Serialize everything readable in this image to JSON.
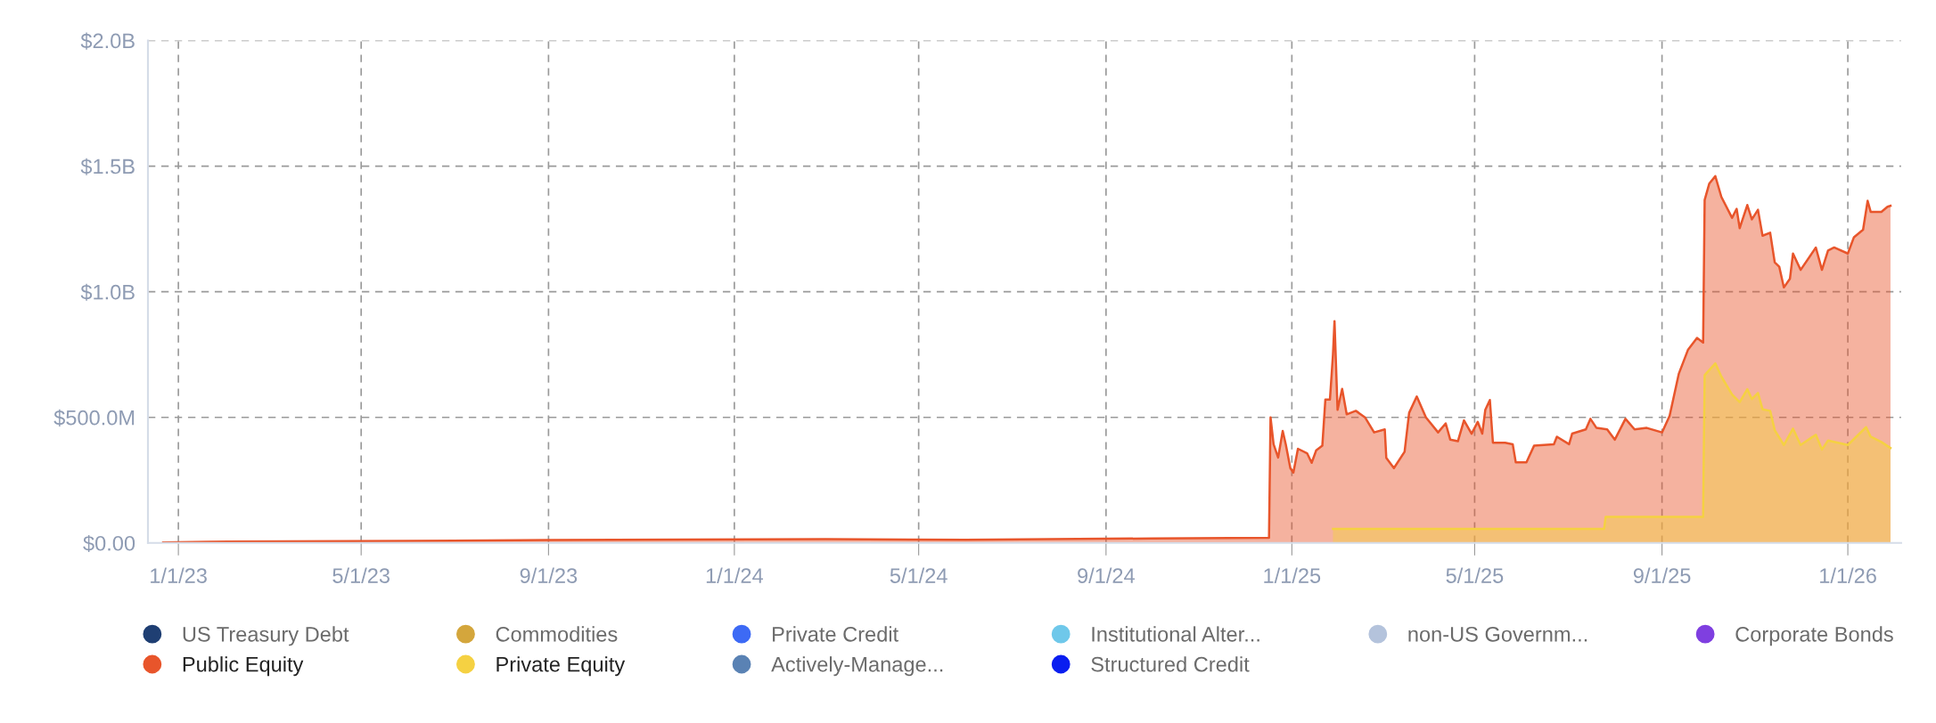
{
  "chart_data": {
    "type": "area",
    "xlim": [
      "2022-12-12",
      "2026-02-05"
    ],
    "xticks": [
      {
        "value": "2023-01-01",
        "label": "1/1/23"
      },
      {
        "value": "2023-05-01",
        "label": "5/1/23"
      },
      {
        "value": "2023-09-01",
        "label": "9/1/23"
      },
      {
        "value": "2024-01-01",
        "label": "1/1/24"
      },
      {
        "value": "2024-05-01",
        "label": "5/1/24"
      },
      {
        "value": "2024-09-01",
        "label": "9/1/24"
      },
      {
        "value": "2025-01-01",
        "label": "1/1/25"
      },
      {
        "value": "2025-05-01",
        "label": "5/1/25"
      },
      {
        "value": "2025-09-01",
        "label": "9/1/25"
      },
      {
        "value": "2026-01-01",
        "label": "1/1/26"
      }
    ],
    "ylim": [
      0,
      2000000000
    ],
    "yticks": [
      {
        "value": 0,
        "label": "$0.00"
      },
      {
        "value": 500000000,
        "label": "$500.0M"
      },
      {
        "value": 1000000000,
        "label": "$1.0B"
      },
      {
        "value": 1500000000,
        "label": "$1.5B"
      },
      {
        "value": 2000000000,
        "label": "$2.0B"
      }
    ],
    "grid": true,
    "legend": "bottom",
    "marker": "none",
    "line_style": "solid",
    "series": [
      {
        "name": "US Treasury Debt",
        "color": "#1f3f73"
      },
      {
        "name": "Commodities",
        "color": "#d4a63c"
      },
      {
        "name": "Private Credit",
        "color": "#3d6af5"
      },
      {
        "name": "Institutional Alter...",
        "color": "#6fc8ea"
      },
      {
        "name": "non-US Governm...",
        "color": "#b4c3dc"
      },
      {
        "name": "Corporate Bonds",
        "color": "#7f3fe0"
      },
      {
        "name": "Public Equity",
        "color": "#e8552b",
        "x": [
          "2022-12-22",
          "2023-01-20",
          "2023-06-01",
          "2023-09-01",
          "2024-03-01",
          "2024-06-01",
          "2024-10-01",
          "2024-12-17",
          "2024-12-18",
          "2024-12-20",
          "2024-12-23",
          "2024-12-26",
          "2024-12-28",
          "2024-12-31",
          "2025-01-02",
          "2025-01-05",
          "2025-01-11",
          "2025-01-14",
          "2025-01-17",
          "2025-01-21",
          "2025-01-23",
          "2025-01-26",
          "2025-01-28",
          "2025-01-29",
          "2025-01-31",
          "2025-02-03",
          "2025-02-06",
          "2025-02-12",
          "2025-02-18",
          "2025-02-24",
          "2025-03-03",
          "2025-03-04",
          "2025-03-09",
          "2025-03-16",
          "2025-03-19",
          "2025-03-24",
          "2025-03-30",
          "2025-04-07",
          "2025-04-12",
          "2025-04-15",
          "2025-04-20",
          "2025-04-24",
          "2025-04-29",
          "2025-05-03",
          "2025-05-06",
          "2025-05-08",
          "2025-05-11",
          "2025-05-13",
          "2025-05-21",
          "2025-05-26",
          "2025-05-28",
          "2025-06-04",
          "2025-06-09",
          "2025-06-22",
          "2025-06-24",
          "2025-07-02",
          "2025-07-04",
          "2025-07-13",
          "2025-07-16",
          "2025-07-20",
          "2025-07-27",
          "2025-08-01",
          "2025-08-08",
          "2025-08-14",
          "2025-08-22",
          "2025-09-01",
          "2025-09-06",
          "2025-09-12",
          "2025-09-18",
          "2025-09-24",
          "2025-09-28",
          "2025-09-29",
          "2025-10-02",
          "2025-10-06",
          "2025-10-10",
          "2025-10-17",
          "2025-10-20",
          "2025-10-22",
          "2025-10-27",
          "2025-10-30",
          "2025-11-03",
          "2025-11-06",
          "2025-11-11",
          "2025-11-14",
          "2025-11-17",
          "2025-11-20",
          "2025-11-24",
          "2025-11-26",
          "2025-12-01",
          "2025-12-11",
          "2025-12-15",
          "2025-12-19",
          "2025-12-23",
          "2026-01-01",
          "2026-01-05",
          "2026-01-11",
          "2026-01-14",
          "2026-01-16",
          "2026-01-23",
          "2026-01-27",
          "2026-01-29"
        ],
        "values": [
          2000000,
          5000000,
          8000000,
          12000000,
          15000000,
          13000000,
          18000000,
          21000000,
          500000000,
          393000000,
          340000000,
          446000000,
          393000000,
          298000000,
          280000000,
          375000000,
          357000000,
          319000000,
          369000000,
          387000000,
          571000000,
          571000000,
          750000000,
          883000000,
          530000000,
          613000000,
          512000000,
          526000000,
          500000000,
          440000000,
          452000000,
          339000000,
          298000000,
          363000000,
          518000000,
          583000000,
          500000000,
          440000000,
          476000000,
          411000000,
          405000000,
          488000000,
          435000000,
          482000000,
          435000000,
          530000000,
          569000000,
          399000000,
          399000000,
          393000000,
          321000000,
          321000000,
          387000000,
          393000000,
          423000000,
          393000000,
          435000000,
          452000000,
          494000000,
          458000000,
          452000000,
          411000000,
          494000000,
          452000000,
          458000000,
          440000000,
          506000000,
          673000000,
          768000000,
          816000000,
          798000000,
          1365000000,
          1430000000,
          1460000000,
          1377000000,
          1294000000,
          1330000000,
          1253000000,
          1345000000,
          1288000000,
          1326000000,
          1223000000,
          1235000000,
          1117000000,
          1099000000,
          1017000000,
          1052000000,
          1152000000,
          1087000000,
          1176000000,
          1087000000,
          1164000000,
          1176000000,
          1152000000,
          1217000000,
          1247000000,
          1362000000,
          1318000000,
          1318000000,
          1338000000,
          1342000000
        ]
      },
      {
        "name": "Private Equity",
        "color": "#f5d142",
        "x": [
          "2025-01-28",
          "2025-07-25",
          "2025-07-26",
          "2025-09-28",
          "2025-09-29",
          "2025-10-06",
          "2025-10-10",
          "2025-10-17",
          "2025-10-22",
          "2025-10-27",
          "2025-10-30",
          "2025-11-03",
          "2025-11-06",
          "2025-11-11",
          "2025-11-14",
          "2025-11-20",
          "2025-11-26",
          "2025-12-01",
          "2025-12-11",
          "2025-12-15",
          "2025-12-19",
          "2026-01-01",
          "2026-01-13",
          "2026-01-16",
          "2026-01-23",
          "2026-01-29"
        ],
        "values": [
          56000000,
          56000000,
          104000000,
          104000000,
          668000000,
          715000000,
          662000000,
          591000000,
          561000000,
          612000000,
          573000000,
          597000000,
          532000000,
          526000000,
          449000000,
          390000000,
          455000000,
          390000000,
          431000000,
          372000000,
          408000000,
          390000000,
          461000000,
          423000000,
          402000000,
          378000000
        ]
      },
      {
        "name": "Actively-Manage...",
        "color": "#5a82b4"
      },
      {
        "name": "Structured Credit",
        "color": "#0a1ef0"
      }
    ]
  }
}
